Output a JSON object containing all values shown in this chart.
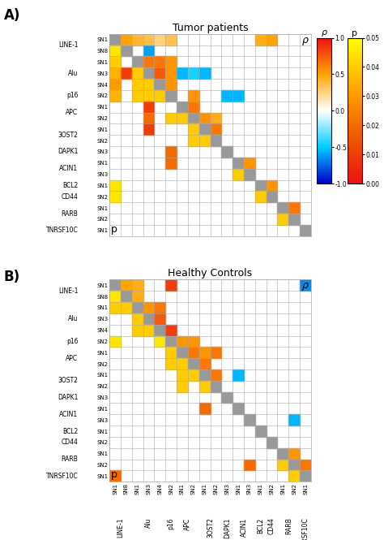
{
  "title_A": "Tumor patients",
  "title_B": "Healthy Controls",
  "sn_labels": [
    "SN1",
    "SN8",
    "SN1",
    "SN3",
    "SN4",
    "SN2",
    "SN1",
    "SN2",
    "SN1",
    "SN2",
    "SN3",
    "SN1",
    "SN3",
    "SN1",
    "SN2",
    "SN1",
    "SN2",
    "SN1"
  ],
  "gene_groups": {
    "LINE-1": [
      0,
      1
    ],
    "Alu": [
      2,
      3,
      4
    ],
    "p16": [
      5
    ],
    "APC": [
      6,
      7
    ],
    "3OST2": [
      8,
      9
    ],
    "DAPK1": [
      10
    ],
    "ACIN1": [
      11,
      12
    ],
    "BCL2": [
      13
    ],
    "CD44": [
      14
    ],
    "RARB": [
      15,
      16
    ],
    "TNRSF10C": [
      17
    ]
  },
  "gene_order": [
    "LINE-1",
    "Alu",
    "p16",
    "APC",
    "3OST2",
    "DAPK1",
    "ACIN1",
    "BCL2",
    "CD44",
    "RARB",
    "TNRSF10C"
  ],
  "n": 18,
  "rho_A_upper": [
    [
      null,
      0.5,
      0.4,
      0.35,
      0.25,
      0.35,
      null,
      null,
      null,
      null,
      null,
      null,
      null,
      0.45,
      0.5,
      null,
      null,
      null
    ],
    [
      null,
      null,
      null,
      -0.6,
      null,
      null,
      null,
      null,
      null,
      null,
      null,
      null,
      null,
      null,
      null,
      null,
      null,
      null
    ],
    [
      null,
      null,
      null,
      0.65,
      0.65,
      0.55,
      null,
      null,
      null,
      null,
      null,
      null,
      null,
      null,
      null,
      null,
      null,
      null
    ],
    [
      null,
      null,
      null,
      null,
      0.75,
      0.55,
      -0.55,
      -0.45,
      -0.55,
      null,
      null,
      null,
      null,
      null,
      null,
      null,
      null,
      null
    ],
    [
      null,
      null,
      null,
      null,
      null,
      0.55,
      null,
      null,
      null,
      null,
      null,
      null,
      null,
      null,
      null,
      null,
      null,
      null
    ],
    [
      null,
      null,
      null,
      null,
      null,
      null,
      null,
      0.55,
      null,
      null,
      -0.55,
      -0.55,
      null,
      null,
      null,
      null,
      null,
      null
    ],
    [
      null,
      null,
      null,
      null,
      null,
      null,
      null,
      0.65,
      null,
      null,
      null,
      null,
      null,
      null,
      null,
      null,
      null,
      null
    ],
    [
      null,
      null,
      null,
      null,
      null,
      null,
      null,
      null,
      0.55,
      0.45,
      null,
      null,
      null,
      null,
      null,
      null,
      null,
      null
    ],
    [
      null,
      null,
      null,
      null,
      null,
      null,
      null,
      null,
      null,
      0.65,
      null,
      null,
      null,
      null,
      null,
      null,
      null,
      null
    ],
    [
      null,
      null,
      null,
      null,
      null,
      null,
      null,
      null,
      null,
      null,
      null,
      null,
      null,
      null,
      null,
      null,
      null,
      null
    ],
    [
      null,
      null,
      null,
      null,
      null,
      null,
      null,
      null,
      null,
      null,
      null,
      null,
      null,
      null,
      null,
      null,
      null,
      null
    ],
    [
      null,
      null,
      null,
      null,
      null,
      null,
      null,
      null,
      null,
      null,
      null,
      null,
      0.55,
      null,
      null,
      null,
      null,
      null
    ],
    [
      null,
      null,
      null,
      null,
      null,
      null,
      null,
      null,
      null,
      null,
      null,
      null,
      null,
      null,
      null,
      null,
      null,
      null
    ],
    [
      null,
      null,
      null,
      null,
      null,
      null,
      null,
      null,
      null,
      null,
      null,
      null,
      null,
      null,
      0.55,
      null,
      null,
      null
    ],
    [
      null,
      null,
      null,
      null,
      null,
      null,
      null,
      null,
      null,
      null,
      null,
      null,
      null,
      null,
      null,
      null,
      null,
      null
    ],
    [
      null,
      null,
      null,
      null,
      null,
      null,
      null,
      null,
      null,
      null,
      null,
      null,
      null,
      null,
      null,
      null,
      0.65,
      null
    ],
    [
      null,
      null,
      null,
      null,
      null,
      null,
      null,
      null,
      null,
      null,
      null,
      null,
      null,
      null,
      null,
      null,
      null,
      null
    ],
    [
      null,
      null,
      null,
      null,
      null,
      null,
      null,
      null,
      null,
      null,
      null,
      null,
      null,
      null,
      null,
      null,
      null,
      null
    ]
  ],
  "p_A_upper": [
    [
      null,
      0.045,
      0.04,
      0.035,
      0.03,
      0.035,
      null,
      null,
      null,
      null,
      null,
      null,
      null,
      0.045,
      0.045,
      null,
      null,
      null
    ],
    [
      null,
      null,
      null,
      0.01,
      null,
      null,
      null,
      null,
      null,
      null,
      null,
      null,
      null,
      null,
      null,
      null,
      null,
      null
    ],
    [
      null,
      null,
      null,
      0.04,
      0.04,
      0.04,
      null,
      null,
      null,
      null,
      null,
      null,
      null,
      null,
      null,
      null,
      null,
      null
    ],
    [
      null,
      null,
      null,
      null,
      0.04,
      0.04,
      0.01,
      0.02,
      0.01,
      null,
      null,
      null,
      null,
      null,
      null,
      null,
      null,
      null
    ],
    [
      null,
      null,
      null,
      null,
      null,
      0.04,
      null,
      null,
      null,
      null,
      null,
      null,
      null,
      null,
      null,
      null,
      null,
      null
    ],
    [
      null,
      null,
      null,
      null,
      null,
      null,
      null,
      0.04,
      null,
      null,
      0.02,
      0.02,
      null,
      null,
      null,
      null,
      null,
      null
    ],
    [
      null,
      null,
      null,
      null,
      null,
      null,
      null,
      0.04,
      null,
      null,
      null,
      null,
      null,
      null,
      null,
      null,
      null,
      null
    ],
    [
      null,
      null,
      null,
      null,
      null,
      null,
      null,
      null,
      0.04,
      0.04,
      null,
      null,
      null,
      null,
      null,
      null,
      null,
      null
    ],
    [
      null,
      null,
      null,
      null,
      null,
      null,
      null,
      null,
      null,
      0.04,
      null,
      null,
      null,
      null,
      null,
      null,
      null,
      null
    ],
    [
      null,
      null,
      null,
      null,
      null,
      null,
      null,
      null,
      null,
      null,
      null,
      null,
      null,
      null,
      null,
      null,
      null,
      null
    ],
    [
      null,
      null,
      null,
      null,
      null,
      null,
      null,
      null,
      null,
      null,
      null,
      null,
      null,
      null,
      null,
      null,
      null,
      null
    ],
    [
      null,
      null,
      null,
      null,
      null,
      null,
      null,
      null,
      null,
      null,
      null,
      null,
      0.04,
      null,
      null,
      null,
      null,
      null
    ],
    [
      null,
      null,
      null,
      null,
      null,
      null,
      null,
      null,
      null,
      null,
      null,
      null,
      null,
      null,
      null,
      null,
      null,
      null
    ],
    [
      null,
      null,
      null,
      null,
      null,
      null,
      null,
      null,
      null,
      null,
      null,
      null,
      null,
      null,
      0.04,
      null,
      null,
      null
    ],
    [
      null,
      null,
      null,
      null,
      null,
      null,
      null,
      null,
      null,
      null,
      null,
      null,
      null,
      null,
      null,
      null,
      null,
      null
    ],
    [
      null,
      null,
      null,
      null,
      null,
      null,
      null,
      null,
      null,
      null,
      null,
      null,
      null,
      null,
      null,
      null,
      0.04,
      null
    ],
    [
      null,
      null,
      null,
      null,
      null,
      null,
      null,
      null,
      null,
      null,
      null,
      null,
      null,
      null,
      null,
      null,
      null,
      null
    ],
    [
      null,
      null,
      null,
      null,
      null,
      null,
      null,
      null,
      null,
      null,
      null,
      null,
      null,
      null,
      null,
      null,
      null,
      null
    ]
  ],
  "rho_B_upper": [
    [
      null,
      0.5,
      0.45,
      null,
      null,
      0.85,
      null,
      null,
      null,
      null,
      null,
      null,
      null,
      null,
      null,
      null,
      null,
      -0.65
    ],
    [
      null,
      null,
      0.45,
      null,
      null,
      null,
      null,
      null,
      null,
      null,
      null,
      null,
      null,
      null,
      null,
      null,
      null,
      null
    ],
    [
      null,
      null,
      null,
      0.55,
      0.65,
      null,
      null,
      null,
      null,
      null,
      null,
      null,
      null,
      null,
      null,
      null,
      null,
      null
    ],
    [
      null,
      null,
      null,
      null,
      0.75,
      null,
      null,
      null,
      null,
      null,
      null,
      null,
      null,
      null,
      null,
      null,
      null,
      null
    ],
    [
      null,
      null,
      null,
      null,
      null,
      0.85,
      null,
      null,
      null,
      null,
      null,
      null,
      null,
      null,
      null,
      null,
      null,
      null
    ],
    [
      null,
      null,
      null,
      null,
      null,
      null,
      0.55,
      0.55,
      null,
      null,
      null,
      null,
      null,
      null,
      null,
      null,
      null,
      null
    ],
    [
      null,
      null,
      null,
      null,
      null,
      null,
      null,
      0.65,
      0.55,
      0.65,
      null,
      null,
      null,
      null,
      null,
      null,
      null,
      null
    ],
    [
      null,
      null,
      null,
      null,
      null,
      null,
      null,
      null,
      0.65,
      null,
      null,
      null,
      null,
      null,
      null,
      null,
      null,
      null
    ],
    [
      null,
      null,
      null,
      null,
      null,
      null,
      null,
      null,
      null,
      0.65,
      null,
      -0.55,
      null,
      null,
      null,
      null,
      null,
      null
    ],
    [
      null,
      null,
      null,
      null,
      null,
      null,
      null,
      null,
      null,
      null,
      null,
      null,
      null,
      null,
      null,
      null,
      null,
      null
    ],
    [
      null,
      null,
      null,
      null,
      null,
      null,
      null,
      null,
      null,
      null,
      null,
      null,
      null,
      null,
      null,
      null,
      null,
      null
    ],
    [
      null,
      null,
      null,
      null,
      null,
      null,
      null,
      null,
      null,
      null,
      null,
      null,
      null,
      null,
      null,
      null,
      null,
      null
    ],
    [
      null,
      null,
      null,
      null,
      null,
      null,
      null,
      null,
      null,
      null,
      null,
      null,
      null,
      null,
      null,
      null,
      -0.55,
      null
    ],
    [
      null,
      null,
      null,
      null,
      null,
      null,
      null,
      null,
      null,
      null,
      null,
      null,
      null,
      null,
      null,
      null,
      null,
      null
    ],
    [
      null,
      null,
      null,
      null,
      null,
      null,
      null,
      null,
      null,
      null,
      null,
      null,
      null,
      null,
      null,
      null,
      null,
      null
    ],
    [
      null,
      null,
      null,
      null,
      null,
      null,
      null,
      null,
      null,
      null,
      null,
      null,
      null,
      null,
      null,
      null,
      0.55,
      null
    ],
    [
      null,
      null,
      null,
      null,
      null,
      null,
      null,
      null,
      null,
      null,
      null,
      null,
      null,
      null,
      null,
      null,
      null,
      0.65
    ],
    [
      null,
      null,
      null,
      null,
      null,
      null,
      null,
      null,
      null,
      null,
      null,
      null,
      null,
      null,
      null,
      null,
      null,
      null
    ]
  ],
  "p_B_upper": [
    [
      null,
      0.045,
      0.04,
      null,
      null,
      0.045,
      null,
      null,
      null,
      null,
      null,
      null,
      null,
      null,
      null,
      null,
      null,
      0.02
    ],
    [
      null,
      null,
      0.04,
      null,
      null,
      null,
      null,
      null,
      null,
      null,
      null,
      null,
      null,
      null,
      null,
      null,
      null,
      null
    ],
    [
      null,
      null,
      null,
      0.04,
      0.04,
      null,
      null,
      null,
      null,
      null,
      null,
      null,
      null,
      null,
      null,
      null,
      null,
      null
    ],
    [
      null,
      null,
      null,
      null,
      0.04,
      null,
      null,
      null,
      null,
      null,
      null,
      null,
      null,
      null,
      null,
      null,
      null,
      null
    ],
    [
      null,
      null,
      null,
      null,
      null,
      0.045,
      null,
      null,
      null,
      null,
      null,
      null,
      null,
      null,
      null,
      null,
      null,
      null
    ],
    [
      null,
      null,
      null,
      null,
      null,
      null,
      0.04,
      0.04,
      null,
      null,
      null,
      null,
      null,
      null,
      null,
      null,
      null,
      null
    ],
    [
      null,
      null,
      null,
      null,
      null,
      null,
      null,
      0.04,
      0.04,
      0.04,
      null,
      null,
      null,
      null,
      null,
      null,
      null,
      null
    ],
    [
      null,
      null,
      null,
      null,
      null,
      null,
      null,
      null,
      0.04,
      null,
      null,
      null,
      null,
      null,
      null,
      null,
      null,
      null
    ],
    [
      null,
      null,
      null,
      null,
      null,
      null,
      null,
      null,
      null,
      0.04,
      null,
      0.02,
      null,
      null,
      null,
      null,
      null,
      null
    ],
    [
      null,
      null,
      null,
      null,
      null,
      null,
      null,
      null,
      null,
      null,
      null,
      null,
      null,
      null,
      null,
      null,
      null,
      null
    ],
    [
      null,
      null,
      null,
      null,
      null,
      null,
      null,
      null,
      null,
      null,
      null,
      null,
      null,
      null,
      null,
      null,
      null,
      null
    ],
    [
      null,
      null,
      null,
      null,
      null,
      null,
      null,
      null,
      null,
      null,
      null,
      null,
      null,
      null,
      null,
      null,
      null,
      null
    ],
    [
      null,
      null,
      null,
      null,
      null,
      null,
      null,
      null,
      null,
      null,
      null,
      null,
      null,
      null,
      null,
      null,
      0.02,
      null
    ],
    [
      null,
      null,
      null,
      null,
      null,
      null,
      null,
      null,
      null,
      null,
      null,
      null,
      null,
      null,
      null,
      null,
      null,
      null
    ],
    [
      null,
      null,
      null,
      null,
      null,
      null,
      null,
      null,
      null,
      null,
      null,
      null,
      null,
      null,
      null,
      null,
      null,
      null
    ],
    [
      null,
      null,
      null,
      null,
      null,
      null,
      null,
      null,
      null,
      null,
      null,
      null,
      null,
      null,
      null,
      null,
      0.04,
      null
    ],
    [
      null,
      null,
      null,
      null,
      null,
      null,
      null,
      null,
      null,
      null,
      null,
      null,
      null,
      null,
      null,
      null,
      null,
      0.04
    ],
    [
      null,
      null,
      null,
      null,
      null,
      null,
      null,
      null,
      null,
      null,
      null,
      null,
      null,
      null,
      null,
      null,
      null,
      null
    ]
  ]
}
